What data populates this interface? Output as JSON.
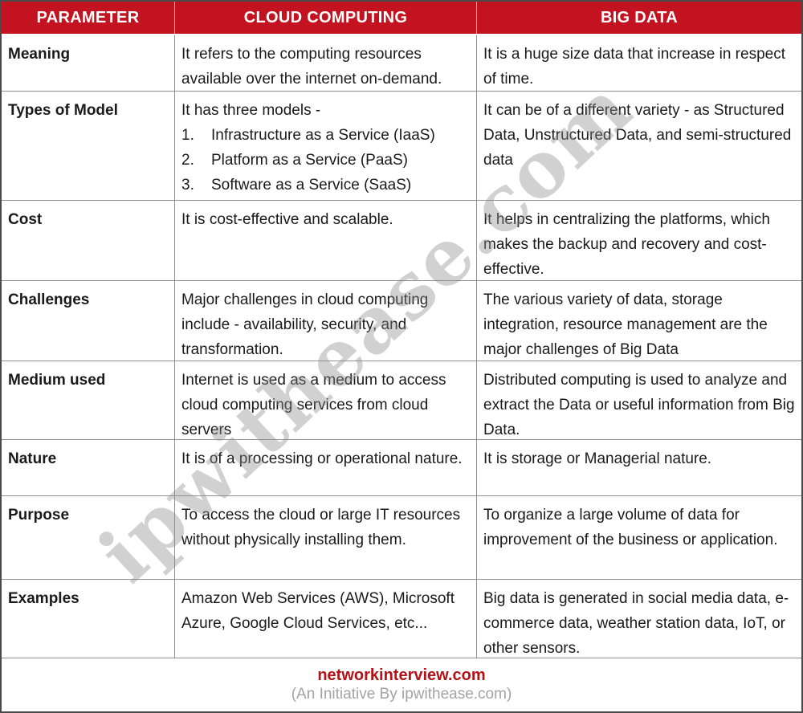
{
  "header": {
    "columns": [
      "PARAMETER",
      "CLOUD COMPUTING",
      "BIG DATA"
    ]
  },
  "rows": [
    {
      "parameter": "Meaning",
      "cloud": {
        "text": "It refers to the computing resources available over the internet on-demand."
      },
      "big_data": {
        "text": "It is a huge size data that increase in respect of time."
      }
    },
    {
      "parameter": "Types of Model",
      "cloud": {
        "text": "It has three models -",
        "list": [
          "Infrastructure as a Service (IaaS)",
          "Platform as a Service (PaaS)",
          "Software as a Service (SaaS)"
        ]
      },
      "big_data": {
        "text": "It can be of a different variety - as Structured Data, Unstructured Data, and semi-structured data"
      }
    },
    {
      "parameter": "Cost",
      "cloud": {
        "text": "It is cost-effective and scalable."
      },
      "big_data": {
        "text": "It helps in centralizing the platforms, which makes the backup and recovery and cost-effective."
      }
    },
    {
      "parameter": "Challenges",
      "cloud": {
        "text": "Major challenges in cloud computing include - availability, security, and transformation."
      },
      "big_data": {
        "text": "The various variety of data, storage integration, resource management are the major challenges of Big Data"
      }
    },
    {
      "parameter": "Medium used",
      "cloud": {
        "text": "Internet is used as a medium to access cloud computing services from cloud servers"
      },
      "big_data": {
        "text": "Distributed computing is used to analyze and extract the Data or useful information from Big Data."
      }
    },
    {
      "parameter": "Nature",
      "cloud": {
        "text": "It is of a processing or operational nature."
      },
      "big_data": {
        "text": "It is storage or Managerial nature."
      }
    },
    {
      "parameter": "Purpose",
      "cloud": {
        "text": "To access the cloud or large IT resources without physically installing them."
      },
      "big_data": {
        "text": "To organize a large volume of data for improvement of the business or application."
      }
    },
    {
      "parameter": "Examples",
      "cloud": {
        "text": "Amazon Web Services (AWS), Microsoft Azure, Google Cloud Services, etc..."
      },
      "big_data": {
        "text": "Big data is generated in social media data, e-commerce data, weather station data, IoT, or other sensors."
      }
    }
  ],
  "footer": {
    "site": "networkinterview.com",
    "tagline": "(An Initiative By ipwithease.com)"
  },
  "watermark": {
    "text": "ipwithease.com"
  },
  "colors": {
    "header_bg": "#c31220",
    "header_text": "#ffffff",
    "footer_site": "#b31217",
    "footer_tagline": "#a3a3a3",
    "grid_border": "#909090",
    "body_text": "#1a1a1a"
  }
}
